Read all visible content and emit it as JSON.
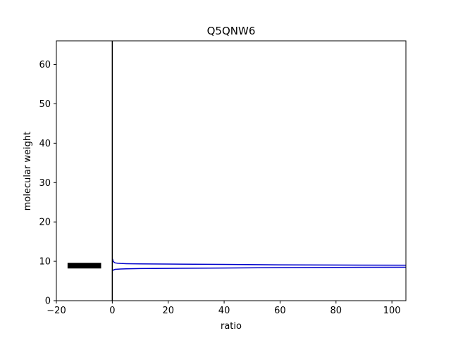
{
  "chart_data": {
    "type": "line",
    "title": "Q5QNW6",
    "xlabel": "ratio",
    "ylabel": "molecular weight",
    "xlim": [
      -20,
      105
    ],
    "ylim": [
      0,
      66
    ],
    "x_ticks": [
      -20,
      0,
      20,
      40,
      60,
      80,
      100
    ],
    "x_tick_labels": [
      "−20",
      "0",
      "20",
      "40",
      "60",
      "80",
      "100"
    ],
    "y_ticks": [
      0,
      10,
      20,
      30,
      40,
      50,
      60
    ],
    "y_tick_labels": [
      "0",
      "10",
      "20",
      "30",
      "40",
      "50",
      "60"
    ],
    "grid": false,
    "legend": "none",
    "vertical_line": {
      "x": 0,
      "color": "#000000"
    },
    "bar_marker": {
      "x_start": -16,
      "x_end": -4,
      "y": 8.9,
      "color": "#000000"
    },
    "series": [
      {
        "color": "#0000cc",
        "x": [
          0.1,
          0.3,
          0.6,
          1,
          2,
          3,
          5,
          10,
          20,
          40,
          60,
          80,
          105
        ],
        "y": [
          10.6,
          10.0,
          9.8,
          9.6,
          9.5,
          9.45,
          9.4,
          9.35,
          9.3,
          9.2,
          9.1,
          9.05,
          9.0
        ]
      },
      {
        "color": "#0000cc",
        "x": [
          0.1,
          0.3,
          0.6,
          1,
          2,
          3,
          5,
          10,
          20,
          40,
          60,
          80,
          105
        ],
        "y": [
          7.6,
          7.75,
          7.85,
          7.95,
          8.0,
          8.05,
          8.1,
          8.15,
          8.2,
          8.3,
          8.4,
          8.45,
          8.5
        ]
      }
    ]
  }
}
